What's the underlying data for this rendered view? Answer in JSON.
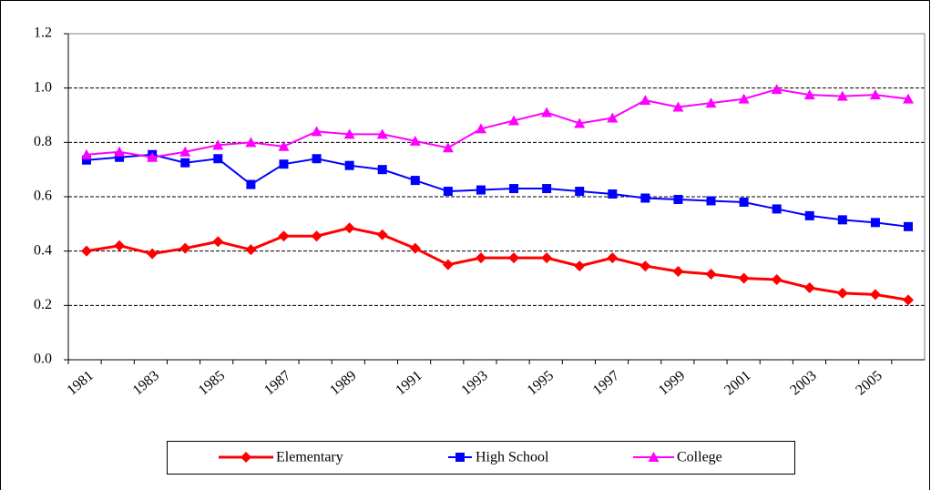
{
  "chart_data": {
    "type": "line",
    "categories": [
      "1981",
      null,
      "1983",
      null,
      "1985",
      null,
      "1987",
      null,
      "1989",
      null,
      "1991",
      null,
      "1993",
      null,
      "1995",
      null,
      "1997",
      null,
      "1999",
      null,
      "2001",
      null,
      "2003",
      null,
      "2005",
      null
    ],
    "series": [
      {
        "name": "Elementary",
        "color": "#ff0000",
        "marker": "diamond",
        "values": [
          0.4,
          0.42,
          0.39,
          0.41,
          0.435,
          0.405,
          0.455,
          0.455,
          0.485,
          0.46,
          0.41,
          0.35,
          0.375,
          0.375,
          0.375,
          0.345,
          0.375,
          0.345,
          0.325,
          0.315,
          0.3,
          0.295,
          0.265,
          0.245,
          0.24,
          0.22
        ]
      },
      {
        "name": "High School",
        "color": "#0000ff",
        "marker": "square",
        "values": [
          0.735,
          0.745,
          0.755,
          0.725,
          0.74,
          0.645,
          0.72,
          0.74,
          0.715,
          0.7,
          0.66,
          0.62,
          0.625,
          0.63,
          0.63,
          0.62,
          0.61,
          0.595,
          0.59,
          0.585,
          0.58,
          0.555,
          0.53,
          0.515,
          0.505,
          0.49
        ]
      },
      {
        "name": "College",
        "color": "#ff00ff",
        "marker": "triangle",
        "values": [
          0.755,
          0.765,
          0.745,
          0.765,
          0.79,
          0.8,
          0.785,
          0.84,
          0.83,
          0.83,
          0.805,
          0.78,
          0.85,
          0.88,
          0.91,
          0.87,
          0.89,
          0.955,
          0.93,
          0.945,
          0.96,
          0.995,
          0.975,
          0.97,
          0.975,
          0.96
        ]
      }
    ],
    "ylim": [
      0,
      1.2
    ],
    "yticks": [
      {
        "value": 0,
        "label": "0.0"
      },
      0.2,
      0.4,
      0.6,
      0.8,
      {
        "value": 1,
        "label": "1.0"
      },
      1.2
    ],
    "grid": true,
    "legend": "bottom"
  }
}
